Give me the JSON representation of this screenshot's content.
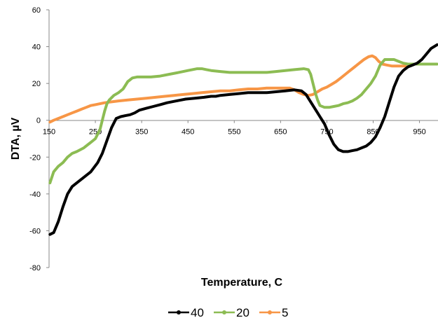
{
  "chart_data": {
    "type": "line",
    "title": "",
    "xlabel": "Temperature, C",
    "ylabel": "DTA, µV",
    "xlim": [
      150,
      990
    ],
    "ylim": [
      -80,
      60
    ],
    "xticks": [
      150,
      250,
      350,
      450,
      550,
      650,
      750,
      850,
      950
    ],
    "yticks": [
      -80,
      -60,
      -40,
      -20,
      0,
      20,
      40,
      60
    ],
    "x_tick_labels": [
      "150",
      "250",
      "350",
      "450",
      "550",
      "650",
      "750",
      "850",
      "950"
    ],
    "y_tick_labels": [
      "-80",
      "-60",
      "-40",
      "-20",
      "0",
      "20",
      "40",
      "60"
    ],
    "grid": false,
    "legend_position": "bottom",
    "series": [
      {
        "name": "40",
        "color": "#000000",
        "points": [
          [
            152,
            -62
          ],
          [
            160,
            -61
          ],
          [
            170,
            -55
          ],
          [
            180,
            -47
          ],
          [
            190,
            -40
          ],
          [
            200,
            -36
          ],
          [
            210,
            -34
          ],
          [
            225,
            -31
          ],
          [
            240,
            -28
          ],
          [
            255,
            -23
          ],
          [
            265,
            -18
          ],
          [
            275,
            -11
          ],
          [
            285,
            -4
          ],
          [
            295,
            1
          ],
          [
            305,
            2
          ],
          [
            315,
            2.5
          ],
          [
            325,
            3
          ],
          [
            335,
            4
          ],
          [
            345,
            5.5
          ],
          [
            360,
            6.5
          ],
          [
            375,
            7.5
          ],
          [
            390,
            8.5
          ],
          [
            405,
            9.5
          ],
          [
            425,
            10.5
          ],
          [
            445,
            11.5
          ],
          [
            465,
            12
          ],
          [
            485,
            12.5
          ],
          [
            500,
            13
          ],
          [
            510,
            13
          ],
          [
            520,
            13.5
          ],
          [
            540,
            14
          ],
          [
            560,
            14.5
          ],
          [
            580,
            15
          ],
          [
            600,
            15
          ],
          [
            620,
            15
          ],
          [
            640,
            15.5
          ],
          [
            660,
            16
          ],
          [
            680,
            16.5
          ],
          [
            695,
            16
          ],
          [
            705,
            14
          ],
          [
            715,
            10
          ],
          [
            725,
            6
          ],
          [
            735,
            2
          ],
          [
            745,
            -2
          ],
          [
            755,
            -8
          ],
          [
            765,
            -13
          ],
          [
            775,
            -16
          ],
          [
            785,
            -17
          ],
          [
            795,
            -17
          ],
          [
            805,
            -16.5
          ],
          [
            815,
            -16
          ],
          [
            825,
            -15
          ],
          [
            835,
            -14
          ],
          [
            845,
            -12
          ],
          [
            855,
            -9
          ],
          [
            865,
            -4
          ],
          [
            875,
            2
          ],
          [
            885,
            10
          ],
          [
            895,
            18
          ],
          [
            905,
            24
          ],
          [
            915,
            27
          ],
          [
            925,
            29
          ],
          [
            935,
            30
          ],
          [
            945,
            31
          ],
          [
            955,
            33
          ],
          [
            965,
            36
          ],
          [
            975,
            39
          ],
          [
            988,
            41
          ]
        ]
      },
      {
        "name": "20",
        "color": "#8cbc53",
        "points": [
          [
            152,
            -34
          ],
          [
            160,
            -28
          ],
          [
            170,
            -25
          ],
          [
            180,
            -23
          ],
          [
            190,
            -20
          ],
          [
            200,
            -18
          ],
          [
            210,
            -17
          ],
          [
            225,
            -15
          ],
          [
            240,
            -12
          ],
          [
            250,
            -10
          ],
          [
            260,
            -5
          ],
          [
            265,
            0
          ],
          [
            270,
            5
          ],
          [
            275,
            9
          ],
          [
            280,
            11
          ],
          [
            290,
            13.5
          ],
          [
            300,
            15
          ],
          [
            310,
            17
          ],
          [
            320,
            21
          ],
          [
            330,
            23
          ],
          [
            340,
            23.5
          ],
          [
            350,
            23.5
          ],
          [
            370,
            23.5
          ],
          [
            390,
            24
          ],
          [
            410,
            25
          ],
          [
            430,
            26
          ],
          [
            450,
            27
          ],
          [
            470,
            28
          ],
          [
            480,
            28
          ],
          [
            490,
            27.5
          ],
          [
            500,
            27
          ],
          [
            520,
            26.5
          ],
          [
            540,
            26
          ],
          [
            560,
            26
          ],
          [
            580,
            26
          ],
          [
            600,
            26
          ],
          [
            620,
            26
          ],
          [
            640,
            26.5
          ],
          [
            660,
            27
          ],
          [
            680,
            27.5
          ],
          [
            700,
            28
          ],
          [
            710,
            27.5
          ],
          [
            715,
            25
          ],
          [
            720,
            20
          ],
          [
            725,
            15
          ],
          [
            730,
            11
          ],
          [
            735,
            8
          ],
          [
            745,
            7
          ],
          [
            755,
            7
          ],
          [
            765,
            7.5
          ],
          [
            775,
            8
          ],
          [
            785,
            9
          ],
          [
            795,
            9.5
          ],
          [
            805,
            10.5
          ],
          [
            815,
            12
          ],
          [
            825,
            14
          ],
          [
            835,
            17
          ],
          [
            845,
            20
          ],
          [
            855,
            24
          ],
          [
            865,
            30
          ],
          [
            875,
            33
          ],
          [
            885,
            33
          ],
          [
            895,
            33
          ],
          [
            905,
            32
          ],
          [
            915,
            31
          ],
          [
            925,
            30.5
          ],
          [
            935,
            30.5
          ],
          [
            945,
            30.5
          ],
          [
            960,
            30.5
          ],
          [
            975,
            30.5
          ],
          [
            988,
            30.5
          ]
        ]
      },
      {
        "name": "5",
        "color": "#f79646",
        "points": [
          [
            152,
            -1
          ],
          [
            160,
            0
          ],
          [
            170,
            1
          ],
          [
            180,
            2
          ],
          [
            190,
            3
          ],
          [
            200,
            4
          ],
          [
            210,
            5
          ],
          [
            220,
            6
          ],
          [
            230,
            7
          ],
          [
            240,
            8
          ],
          [
            250,
            8.5
          ],
          [
            260,
            9
          ],
          [
            270,
            9.5
          ],
          [
            285,
            10
          ],
          [
            300,
            10.5
          ],
          [
            320,
            11
          ],
          [
            340,
            11.5
          ],
          [
            360,
            12
          ],
          [
            380,
            12.5
          ],
          [
            400,
            13
          ],
          [
            420,
            13.5
          ],
          [
            440,
            14
          ],
          [
            460,
            14.5
          ],
          [
            480,
            15
          ],
          [
            500,
            15.5
          ],
          [
            520,
            16
          ],
          [
            540,
            16
          ],
          [
            560,
            16.5
          ],
          [
            580,
            17
          ],
          [
            600,
            17
          ],
          [
            620,
            17.5
          ],
          [
            640,
            17.5
          ],
          [
            660,
            17.5
          ],
          [
            670,
            17.5
          ],
          [
            680,
            16.5
          ],
          [
            690,
            15
          ],
          [
            700,
            14
          ],
          [
            710,
            13.5
          ],
          [
            720,
            14
          ],
          [
            730,
            15.5
          ],
          [
            740,
            17
          ],
          [
            750,
            18
          ],
          [
            760,
            19.5
          ],
          [
            770,
            21
          ],
          [
            780,
            23
          ],
          [
            790,
            25
          ],
          [
            800,
            27
          ],
          [
            810,
            29
          ],
          [
            820,
            31
          ],
          [
            830,
            33
          ],
          [
            840,
            34.5
          ],
          [
            848,
            35
          ],
          [
            855,
            34
          ],
          [
            862,
            32
          ],
          [
            870,
            30.5
          ],
          [
            880,
            30
          ],
          [
            890,
            29.5
          ],
          [
            900,
            29.5
          ],
          [
            910,
            29.5
          ],
          [
            920,
            29.5
          ]
        ]
      }
    ]
  }
}
